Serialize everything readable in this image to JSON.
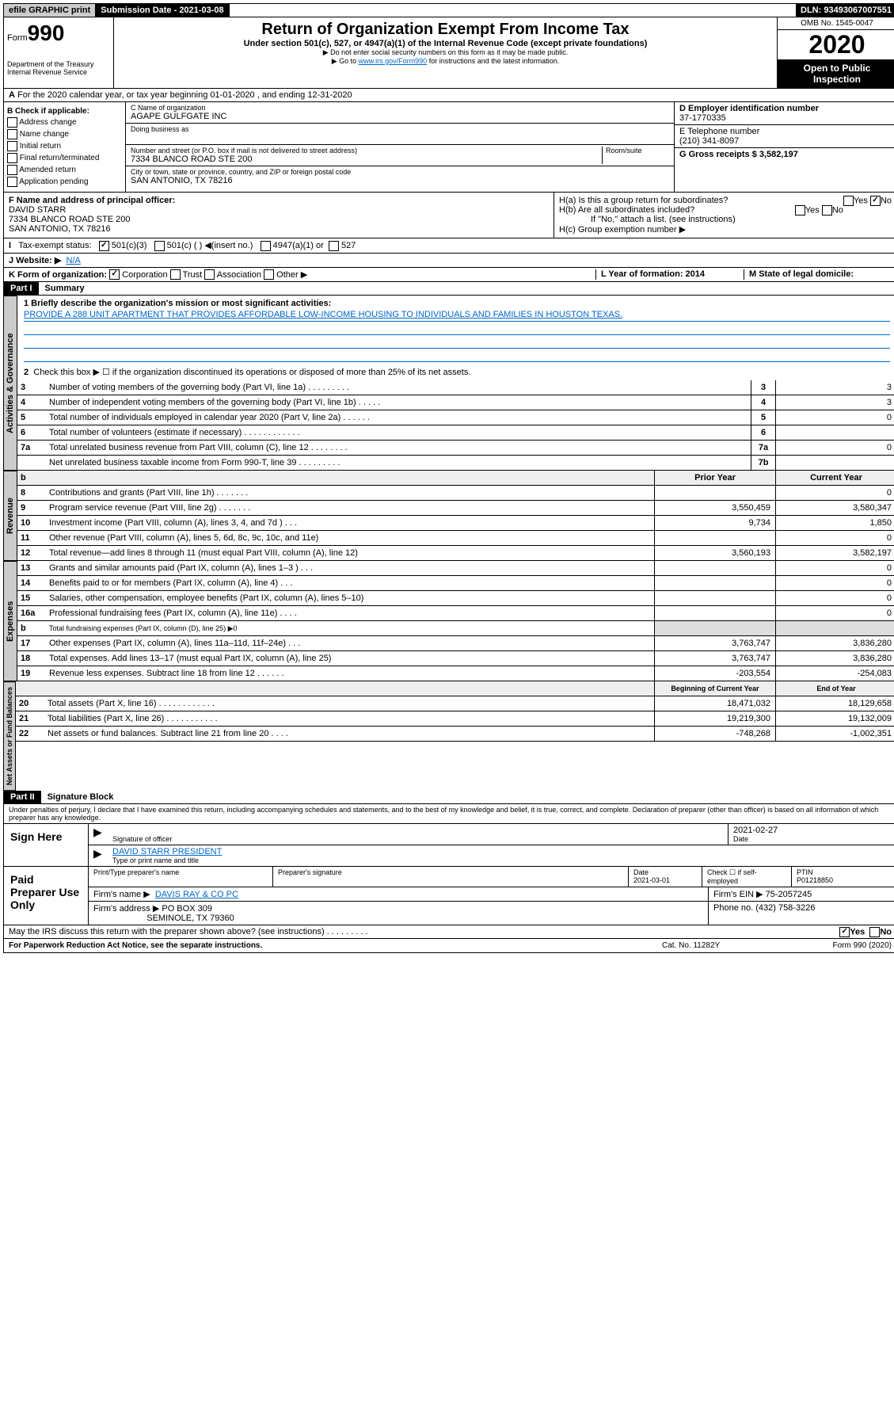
{
  "topbar": {
    "efile": "efile GRAPHIC print",
    "submission_label": "Submission Date - 2021-03-08",
    "dln": "DLN: 93493067007551"
  },
  "header": {
    "form_label": "Form",
    "form_number": "990",
    "dept": "Department of the Treasury\nInternal Revenue Service",
    "title": "Return of Organization Exempt From Income Tax",
    "subtitle": "Under section 501(c), 527, or 4947(a)(1) of the Internal Revenue Code (except private foundations)",
    "note1": "▶ Do not enter social security numbers on this form as it may be made public.",
    "note2_pre": "▶ Go to ",
    "note2_link": "www.irs.gov/Form990",
    "note2_post": " for instructions and the latest information.",
    "omb": "OMB No. 1545-0047",
    "year": "2020",
    "open": "Open to Public Inspection"
  },
  "line_a": "For the 2020 calendar year, or tax year beginning 01-01-2020    , and ending 12-31-2020",
  "section_b": {
    "label": "B Check if applicable:",
    "items": [
      "Address change",
      "Name change",
      "Initial return",
      "Final return/terminated",
      "Amended return",
      "Application pending"
    ]
  },
  "section_c": {
    "name_label": "C Name of organization",
    "name": "AGAPE GULFGATE INC",
    "dba_label": "Doing business as",
    "addr_label": "Number and street (or P.O. box if mail is not delivered to street address)",
    "room_label": "Room/suite",
    "addr": "7334 BLANCO ROAD STE 200",
    "city_label": "City or town, state or province, country, and ZIP or foreign postal code",
    "city": "SAN ANTONIO, TX  78216"
  },
  "section_d": {
    "label": "D Employer identification number",
    "value": "37-1770335"
  },
  "section_e": {
    "label": "E Telephone number",
    "value": "(210) 341-8097"
  },
  "section_g": {
    "label": "G Gross receipts $ 3,582,197"
  },
  "section_f": {
    "label": "F  Name and address of principal officer:",
    "name": "DAVID STARR",
    "addr1": "7334 BLANCO ROAD STE 200",
    "addr2": "SAN ANTONIO, TX  78216"
  },
  "section_h": {
    "a": "H(a)  Is this a group return for subordinates?",
    "b": "H(b)  Are all subordinates included?",
    "b_note": "If \"No,\" attach a list. (see instructions)",
    "c": "H(c)  Group exemption number ▶",
    "yes": "Yes",
    "no": "No"
  },
  "section_i": {
    "label": "Tax-exempt status:",
    "opt1": "501(c)(3)",
    "opt2": "501(c) (  ) ◀(insert no.)",
    "opt3": "4947(a)(1) or",
    "opt4": "527"
  },
  "section_j": {
    "label": "J   Website: ▶",
    "value": "N/A"
  },
  "section_k": {
    "label": "K Form of organization:",
    "opts": [
      "Corporation",
      "Trust",
      "Association",
      "Other ▶"
    ]
  },
  "section_l": {
    "label": "L Year of formation: 2014"
  },
  "section_m": {
    "label": "M State of legal domicile:"
  },
  "part1": {
    "header": "Part I",
    "title": "Summary",
    "line1_label": "1  Briefly describe the organization's mission or most significant activities:",
    "line1_text": "PROVIDE A 288 UNIT APARTMENT THAT PROVIDES AFFORDABLE LOW-INCOME HOUSING TO INDIVIDUALS AND FAMILIES IN HOUSTON TEXAS.",
    "line2": "Check this box ▶ ☐  if the organization discontinued its operations or disposed of more than 25% of its net assets.",
    "rows_gov": [
      {
        "n": "3",
        "d": "Number of voting members of the governing body (Part VI, line 1a)  .    .    .    .    .    .    .    .    .",
        "b": "3",
        "v": "3"
      },
      {
        "n": "4",
        "d": "Number of independent voting members of the governing body (Part VI, line 1b)  .    .    .    .    .",
        "b": "4",
        "v": "3"
      },
      {
        "n": "5",
        "d": "Total number of individuals employed in calendar year 2020 (Part V, line 2a)  .    .    .    .    .    .",
        "b": "5",
        "v": "0"
      },
      {
        "n": "6",
        "d": "Total number of volunteers (estimate if necessary)   .    .    .    .    .    .    .    .    .    .    .    .",
        "b": "6",
        "v": ""
      },
      {
        "n": "7a",
        "d": "Total unrelated business revenue from Part VIII, column (C), line 12  .    .    .    .    .    .    .    .",
        "b": "7a",
        "v": "0"
      },
      {
        "n": "",
        "d": "Net unrelated business taxable income from Form 990-T, line 39  .    .    .    .    .    .    .    .    .",
        "b": "7b",
        "v": ""
      }
    ],
    "hdr_prior": "Prior Year",
    "hdr_current": "Current Year",
    "rows_rev": [
      {
        "n": "8",
        "d": "Contributions and grants (Part VIII, line 1h)  .    .    .    .    .    .    .",
        "p": "",
        "c": "0"
      },
      {
        "n": "9",
        "d": "Program service revenue (Part VIII, line 2g)  .    .    .    .    .    .    .",
        "p": "3,550,459",
        "c": "3,580,347"
      },
      {
        "n": "10",
        "d": "Investment income (Part VIII, column (A), lines 3, 4, and 7d )  .    .    .",
        "p": "9,734",
        "c": "1,850"
      },
      {
        "n": "11",
        "d": "Other revenue (Part VIII, column (A), lines 5, 6d, 8c, 9c, 10c, and 11e)",
        "p": "",
        "c": "0"
      },
      {
        "n": "12",
        "d": "Total revenue—add lines 8 through 11 (must equal Part VIII, column (A), line 12)",
        "p": "3,560,193",
        "c": "3,582,197"
      }
    ],
    "rows_exp": [
      {
        "n": "13",
        "d": "Grants and similar amounts paid (Part IX, column (A), lines 1–3 )  .    .    .",
        "p": "",
        "c": "0"
      },
      {
        "n": "14",
        "d": "Benefits paid to or for members (Part IX, column (A), line 4)  .    .    .",
        "p": "",
        "c": "0"
      },
      {
        "n": "15",
        "d": "Salaries, other compensation, employee benefits (Part IX, column (A), lines 5–10)",
        "p": "",
        "c": "0"
      },
      {
        "n": "16a",
        "d": "Professional fundraising fees (Part IX, column (A), line 11e)  .    .    .    .",
        "p": "",
        "c": "0"
      }
    ],
    "row_16b": {
      "n": "b",
      "d": "Total fundraising expenses (Part IX, column (D), line 25) ▶0"
    },
    "rows_exp2": [
      {
        "n": "17",
        "d": "Other expenses (Part IX, column (A), lines 11a–11d, 11f–24e)  .    .    .",
        "p": "3,763,747",
        "c": "3,836,280"
      },
      {
        "n": "18",
        "d": "Total expenses. Add lines 13–17 (must equal Part IX, column (A), line 25)",
        "p": "3,763,747",
        "c": "3,836,280"
      },
      {
        "n": "19",
        "d": "Revenue less expenses. Subtract line 18 from line 12  .    .    .    .    .    .",
        "p": "-203,554",
        "c": "-254,083"
      }
    ],
    "hdr_begin": "Beginning of Current Year",
    "hdr_end": "End of Year",
    "rows_net": [
      {
        "n": "20",
        "d": "Total assets (Part X, line 16)  .    .    .    .    .    .    .    .    .    .    .    .",
        "p": "18,471,032",
        "c": "18,129,658"
      },
      {
        "n": "21",
        "d": "Total liabilities (Part X, line 26)   .    .    .    .    .    .    .    .    .    .    .",
        "p": "19,219,300",
        "c": "19,132,009"
      },
      {
        "n": "22",
        "d": "Net assets or fund balances. Subtract line 21 from line 20  .    .    .    .",
        "p": "-748,268",
        "c": "-1,002,351"
      }
    ]
  },
  "vtabs": {
    "gov": "Activities & Governance",
    "rev": "Revenue",
    "exp": "Expenses",
    "net": "Net Assets or Fund Balances"
  },
  "part2": {
    "header": "Part II",
    "title": "Signature Block",
    "perjury": "Under penalties of perjury, I declare that I have examined this return, including accompanying schedules and statements, and to the best of my knowledge and belief, it is true, correct, and complete. Declaration of preparer (other than officer) is based on all information of which preparer has any knowledge."
  },
  "sign": {
    "label": "Sign Here",
    "sig_officer": "Signature of officer",
    "date": "2021-02-27",
    "date_label": "Date",
    "name": "DAVID STARR  PRESIDENT",
    "name_label": "Type or print name and title"
  },
  "paid": {
    "label": "Paid Preparer Use Only",
    "h1": "Print/Type preparer's name",
    "h2": "Preparer's signature",
    "h3": "Date",
    "date": "2021-03-01",
    "h4_pre": "Check ☐ if self-employed",
    "h5": "PTIN",
    "ptin": "P01218850",
    "firm_name_label": "Firm's name    ▶",
    "firm_name": "DAVIS RAY & CO PC",
    "firm_ein_label": "Firm's EIN ▶",
    "firm_ein": "75-2057245",
    "firm_addr_label": "Firm's address ▶",
    "firm_addr": "PO BOX 309",
    "firm_city": "SEMINOLE, TX  79360",
    "phone_label": "Phone no. (432) 758-3226"
  },
  "discuss": {
    "text": "May the IRS discuss this return with the preparer shown above? (see instructions)   .    .    .    .    .    .    .    .    .",
    "yes": "Yes",
    "no": "No"
  },
  "footer": {
    "left": "For Paperwork Reduction Act Notice, see the separate instructions.",
    "mid": "Cat. No. 11282Y",
    "right": "Form 990 (2020)"
  }
}
